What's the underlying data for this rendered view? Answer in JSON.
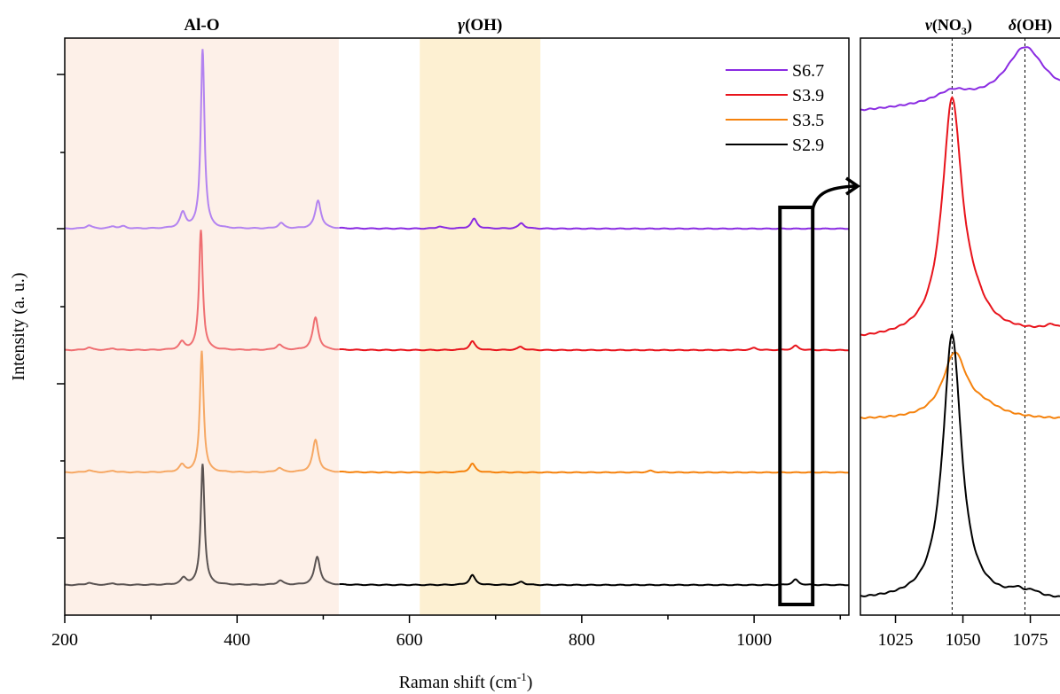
{
  "chart_data": [
    {
      "type": "line",
      "title": "",
      "xlabel": "Raman shift (cm",
      "xlabel_sup": "-1",
      "xlabel_close": ")",
      "ylabel": "Intensity (a. u.)",
      "xlim": [
        200,
        1110
      ],
      "x_ticks": [
        200,
        400,
        600,
        800,
        1000
      ],
      "y_tick_labels": false,
      "bands": [
        {
          "label": "Al-O",
          "x0": 200,
          "x1": 518,
          "color": "#fdf0e8"
        },
        {
          "label_prefix": "γ",
          "label_rest": "(OH)",
          "x0": 612,
          "x1": 752,
          "color": "#fdf0d2"
        }
      ],
      "highlight_box": {
        "x0": 1030,
        "x1": 1068,
        "note": "region magnified in right panel"
      },
      "legend_position": "top-right",
      "series": [
        {
          "name": "S6.7",
          "color": "#8a2be2",
          "band_color": "#b383f0",
          "offset": 3,
          "peaks": [
            [
              228,
              0.06
            ],
            [
              256,
              0.04
            ],
            [
              268,
              0.04
            ],
            [
              337,
              0.28
            ],
            [
              360,
              3.32
            ],
            [
              451,
              0.1
            ],
            [
              494,
              0.52
            ],
            [
              635,
              0.04
            ],
            [
              675,
              0.18
            ],
            [
              730,
              0.1
            ]
          ]
        },
        {
          "name": "S3.9",
          "color": "#e8141c",
          "band_color": "#ef6f72",
          "offset": 2,
          "peaks": [
            [
              228,
              0.05
            ],
            [
              256,
              0.03
            ],
            [
              336,
              0.14
            ],
            [
              358,
              2.22
            ],
            [
              449,
              0.1
            ],
            [
              491,
              0.6
            ],
            [
              673,
              0.16
            ],
            [
              729,
              0.06
            ],
            [
              1000,
              0.04
            ],
            [
              1048,
              0.08
            ]
          ]
        },
        {
          "name": "S3.5",
          "color": "#f5820d",
          "band_color": "#f6a864",
          "offset": 1,
          "peaks": [
            [
              228,
              0.04
            ],
            [
              256,
              0.03
            ],
            [
              336,
              0.13
            ],
            [
              359,
              2.25
            ],
            [
              449,
              0.08
            ],
            [
              491,
              0.6
            ],
            [
              673,
              0.16
            ],
            [
              880,
              0.03
            ]
          ]
        },
        {
          "name": "S2.9",
          "color": "#000000",
          "band_color": "#5a5352",
          "offset": 0,
          "peaks": [
            [
              228,
              0.04
            ],
            [
              256,
              0.03
            ],
            [
              338,
              0.12
            ],
            [
              360,
              2.24
            ],
            [
              450,
              0.08
            ],
            [
              493,
              0.52
            ],
            [
              673,
              0.18
            ],
            [
              730,
              0.06
            ],
            [
              1048,
              0.1
            ]
          ]
        }
      ]
    },
    {
      "type": "line",
      "title": "",
      "xlim": [
        1012,
        1086
      ],
      "x_ticks": [
        1025,
        1050,
        1075
      ],
      "reference_lines": [
        {
          "x": 1046,
          "label_prefix": "ν",
          "label_main": "(NO",
          "label_sub": "3",
          "label_close": ")"
        },
        {
          "x": 1073,
          "label_prefix": "δ",
          "label_rest": "(OH)"
        }
      ],
      "series": [
        {
          "name": "S6.7",
          "color": "#8a2be2",
          "offset": 5.2,
          "baseline_slope": 0.002,
          "peaks": [
            [
              1046,
              0.12,
              8
            ],
            [
              1073,
              0.55,
              9
            ]
          ]
        },
        {
          "name": "S3.9",
          "color": "#e8141c",
          "offset": 2.8,
          "baseline_slope": 0.001,
          "peaks": [
            [
              1046,
              2.45,
              4.5
            ],
            [
              1054,
              0.18,
              6
            ],
            [
              1083,
              0.05,
              3
            ]
          ]
        },
        {
          "name": "S3.5",
          "color": "#f5820d",
          "offset": 1.95,
          "baseline_slope": 0.0,
          "peaks": [
            [
              1047,
              0.68,
              5.5
            ],
            [
              1058,
              0.1,
              8
            ]
          ]
        },
        {
          "name": "S2.9",
          "color": "#000000",
          "offset": 0.05,
          "baseline_slope": 0.0,
          "peaks": [
            [
              1046,
              2.8,
              4.2
            ],
            [
              1070,
              0.06,
              3
            ],
            [
              1076,
              0.05,
              3
            ]
          ]
        }
      ]
    }
  ]
}
